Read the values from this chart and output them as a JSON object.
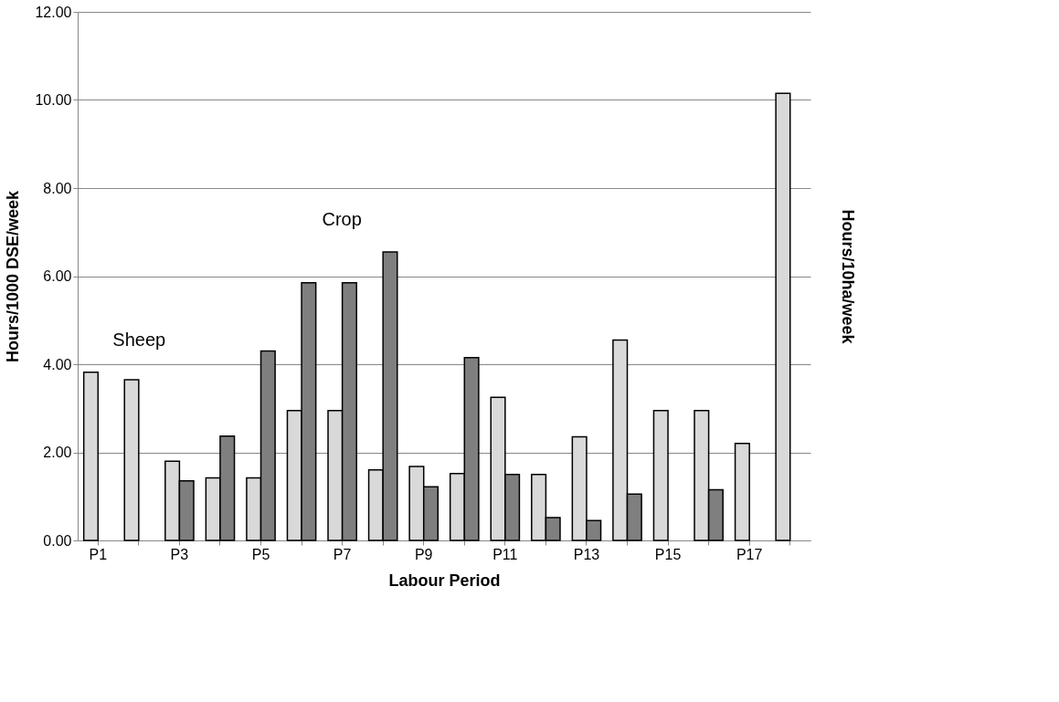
{
  "chart_data": {
    "type": "bar",
    "xlabel": "Labour Period",
    "ylabel": "Hours/1000 DSE/week",
    "y2label": "Hours/10ha/week",
    "categories": [
      "P1",
      null,
      "P3",
      null,
      "P5",
      null,
      "P7",
      null,
      "P9",
      null,
      "P11",
      null,
      "P13",
      null,
      "P15",
      null,
      "P17",
      null
    ],
    "series": [
      {
        "name": "Sheep",
        "color": "#d9d9d9",
        "values": [
          3.82,
          3.65,
          1.8,
          1.42,
          1.42,
          2.95,
          2.95,
          1.6,
          1.68,
          1.52,
          3.25,
          1.5,
          2.35,
          4.55,
          2.95,
          2.95,
          2.2,
          10.15
        ]
      },
      {
        "name": "Crop",
        "color": "#7f7f7f",
        "values": [
          null,
          null,
          1.35,
          2.37,
          4.3,
          5.85,
          5.85,
          6.55,
          1.22,
          4.15,
          1.5,
          0.52,
          0.45,
          1.05,
          null,
          1.15,
          null,
          null
        ]
      }
    ],
    "ylim": [
      0,
      12
    ],
    "yticks": [
      {
        "value": 0,
        "label": "0.00"
      },
      {
        "value": 2,
        "label": "2.00"
      },
      {
        "value": 4,
        "label": "4.00"
      },
      {
        "value": 6,
        "label": "6.00"
      },
      {
        "value": 8,
        "label": "8.00"
      },
      {
        "value": 10,
        "label": "10.00"
      },
      {
        "value": 12,
        "label": "12.00"
      }
    ],
    "grid": "y",
    "legend": false
  }
}
